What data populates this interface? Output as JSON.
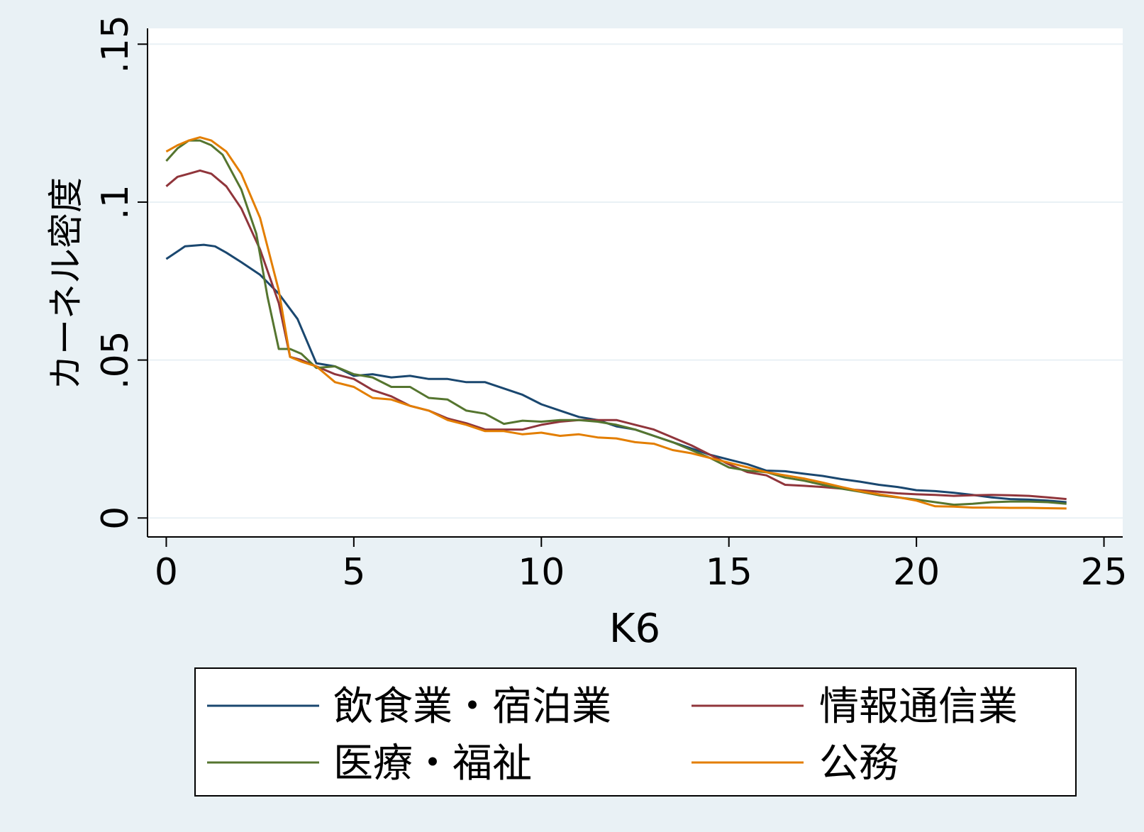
{
  "chart_data": {
    "type": "line",
    "title": "",
    "xlabel": "K6",
    "ylabel": "カーネル密度",
    "xlim": [
      -0.5,
      25.5
    ],
    "ylim": [
      -0.006,
      0.155
    ],
    "x_ticks": [
      0,
      5,
      10,
      15,
      20,
      25
    ],
    "x_tick_labels": [
      "0",
      "5",
      "10",
      "15",
      "20",
      "25"
    ],
    "y_ticks": [
      0,
      0.05,
      0.1,
      0.15
    ],
    "y_tick_labels": [
      "0",
      ".05",
      ".1",
      ".15"
    ],
    "grid": true,
    "legend_position": "bottom",
    "colors": {
      "background": "#e9f1f5",
      "plot_area": "#ffffff",
      "gridline": "#e9f1f5"
    },
    "series": [
      {
        "name": "飲食業・宿泊業",
        "color": "#1a476f",
        "points": [
          [
            0,
            0.082
          ],
          [
            0.5,
            0.086
          ],
          [
            1,
            0.0865
          ],
          [
            1.3,
            0.086
          ],
          [
            1.6,
            0.084
          ],
          [
            2,
            0.081
          ],
          [
            2.5,
            0.077
          ],
          [
            3,
            0.071
          ],
          [
            3.5,
            0.063
          ],
          [
            4,
            0.049
          ],
          [
            4.5,
            0.048
          ],
          [
            5,
            0.045
          ],
          [
            5.5,
            0.0455
          ],
          [
            6,
            0.0445
          ],
          [
            6.5,
            0.045
          ],
          [
            7,
            0.044
          ],
          [
            7.5,
            0.044
          ],
          [
            8,
            0.043
          ],
          [
            8.5,
            0.043
          ],
          [
            9,
            0.041
          ],
          [
            9.5,
            0.039
          ],
          [
            10,
            0.036
          ],
          [
            10.5,
            0.034
          ],
          [
            11,
            0.032
          ],
          [
            11.5,
            0.031
          ],
          [
            12,
            0.029
          ],
          [
            12.5,
            0.028
          ],
          [
            13,
            0.026
          ],
          [
            13.5,
            0.024
          ],
          [
            14,
            0.022
          ],
          [
            14.5,
            0.02
          ],
          [
            15,
            0.0185
          ],
          [
            15.5,
            0.017
          ],
          [
            16,
            0.015
          ],
          [
            16.5,
            0.0148
          ],
          [
            17,
            0.014
          ],
          [
            17.5,
            0.0133
          ],
          [
            18,
            0.0123
          ],
          [
            18.5,
            0.0115
          ],
          [
            19,
            0.0105
          ],
          [
            19.5,
            0.0098
          ],
          [
            20,
            0.0088
          ],
          [
            20.5,
            0.0085
          ],
          [
            21,
            0.008
          ],
          [
            21.5,
            0.0073
          ],
          [
            22,
            0.0065
          ],
          [
            22.5,
            0.006
          ],
          [
            23,
            0.0058
          ],
          [
            23.5,
            0.0055
          ],
          [
            24,
            0.005
          ]
        ]
      },
      {
        "name": "情報通信業",
        "color": "#90353b",
        "points": [
          [
            0,
            0.105
          ],
          [
            0.3,
            0.108
          ],
          [
            0.6,
            0.109
          ],
          [
            0.9,
            0.11
          ],
          [
            1.2,
            0.109
          ],
          [
            1.6,
            0.105
          ],
          [
            2,
            0.098
          ],
          [
            2.5,
            0.085
          ],
          [
            3,
            0.068
          ],
          [
            3.3,
            0.051
          ],
          [
            3.6,
            0.05
          ],
          [
            4,
            0.048
          ],
          [
            4.5,
            0.0455
          ],
          [
            5,
            0.044
          ],
          [
            5.5,
            0.0405
          ],
          [
            6,
            0.0385
          ],
          [
            6.5,
            0.0355
          ],
          [
            7,
            0.034
          ],
          [
            7.5,
            0.0315
          ],
          [
            8,
            0.03
          ],
          [
            8.5,
            0.028
          ],
          [
            9,
            0.028
          ],
          [
            9.5,
            0.028
          ],
          [
            10,
            0.0295
          ],
          [
            10.5,
            0.0305
          ],
          [
            11,
            0.031
          ],
          [
            11.5,
            0.031
          ],
          [
            12,
            0.031
          ],
          [
            12.5,
            0.0295
          ],
          [
            13,
            0.028
          ],
          [
            13.5,
            0.0255
          ],
          [
            14,
            0.023
          ],
          [
            14.5,
            0.02
          ],
          [
            15,
            0.017
          ],
          [
            15.5,
            0.0145
          ],
          [
            16,
            0.0135
          ],
          [
            16.5,
            0.0105
          ],
          [
            17,
            0.0102
          ],
          [
            17.5,
            0.0098
          ],
          [
            18,
            0.0093
          ],
          [
            18.5,
            0.0088
          ],
          [
            19,
            0.0083
          ],
          [
            19.5,
            0.0078
          ],
          [
            20,
            0.0075
          ],
          [
            20.5,
            0.0073
          ],
          [
            21,
            0.007
          ],
          [
            21.5,
            0.0072
          ],
          [
            22,
            0.0073
          ],
          [
            22.5,
            0.0072
          ],
          [
            23,
            0.007
          ],
          [
            23.5,
            0.0065
          ],
          [
            24,
            0.006
          ]
        ]
      },
      {
        "name": "医療・福祉",
        "color": "#55752f",
        "points": [
          [
            0,
            0.113
          ],
          [
            0.3,
            0.117
          ],
          [
            0.6,
            0.1195
          ],
          [
            0.9,
            0.1195
          ],
          [
            1.2,
            0.118
          ],
          [
            1.5,
            0.115
          ],
          [
            2,
            0.104
          ],
          [
            2.4,
            0.09
          ],
          [
            2.7,
            0.07
          ],
          [
            3,
            0.0535
          ],
          [
            3.3,
            0.0535
          ],
          [
            3.6,
            0.052
          ],
          [
            4,
            0.0475
          ],
          [
            4.5,
            0.048
          ],
          [
            5,
            0.0455
          ],
          [
            5.5,
            0.0445
          ],
          [
            6,
            0.0415
          ],
          [
            6.5,
            0.0415
          ],
          [
            7,
            0.038
          ],
          [
            7.5,
            0.0375
          ],
          [
            8,
            0.034
          ],
          [
            8.5,
            0.033
          ],
          [
            9,
            0.0298
          ],
          [
            9.5,
            0.0308
          ],
          [
            10,
            0.0305
          ],
          [
            10.5,
            0.031
          ],
          [
            11,
            0.031
          ],
          [
            11.5,
            0.0305
          ],
          [
            12,
            0.0295
          ],
          [
            12.5,
            0.028
          ],
          [
            13,
            0.026
          ],
          [
            13.5,
            0.024
          ],
          [
            14,
            0.0215
          ],
          [
            14.5,
            0.019
          ],
          [
            15,
            0.016
          ],
          [
            15.5,
            0.015
          ],
          [
            16,
            0.0145
          ],
          [
            16.5,
            0.0128
          ],
          [
            17,
            0.0118
          ],
          [
            17.5,
            0.0105
          ],
          [
            18,
            0.0093
          ],
          [
            18.5,
            0.0083
          ],
          [
            19,
            0.0072
          ],
          [
            19.5,
            0.0065
          ],
          [
            20,
            0.0058
          ],
          [
            20.5,
            0.005
          ],
          [
            21,
            0.0042
          ],
          [
            21.5,
            0.0045
          ],
          [
            22,
            0.005
          ],
          [
            22.5,
            0.0052
          ],
          [
            23,
            0.0052
          ],
          [
            23.5,
            0.005
          ],
          [
            24,
            0.0045
          ]
        ]
      },
      {
        "name": "公務",
        "color": "#e37e00",
        "points": [
          [
            0,
            0.116
          ],
          [
            0.3,
            0.118
          ],
          [
            0.6,
            0.1195
          ],
          [
            0.9,
            0.1205
          ],
          [
            1.2,
            0.1195
          ],
          [
            1.6,
            0.116
          ],
          [
            2,
            0.109
          ],
          [
            2.5,
            0.095
          ],
          [
            3,
            0.072
          ],
          [
            3.3,
            0.051
          ],
          [
            3.6,
            0.0495
          ],
          [
            4,
            0.048
          ],
          [
            4.5,
            0.043
          ],
          [
            5,
            0.0415
          ],
          [
            5.5,
            0.038
          ],
          [
            6,
            0.0375
          ],
          [
            6.5,
            0.0355
          ],
          [
            7,
            0.034
          ],
          [
            7.5,
            0.031
          ],
          [
            8,
            0.0295
          ],
          [
            8.5,
            0.0275
          ],
          [
            9,
            0.0275
          ],
          [
            9.5,
            0.0265
          ],
          [
            10,
            0.027
          ],
          [
            10.5,
            0.026
          ],
          [
            11,
            0.0265
          ],
          [
            11.5,
            0.0255
          ],
          [
            12,
            0.0252
          ],
          [
            12.5,
            0.024
          ],
          [
            13,
            0.0235
          ],
          [
            13.5,
            0.0215
          ],
          [
            14,
            0.0205
          ],
          [
            14.5,
            0.019
          ],
          [
            15,
            0.0175
          ],
          [
            15.5,
            0.016
          ],
          [
            16,
            0.0145
          ],
          [
            16.5,
            0.0135
          ],
          [
            17,
            0.0125
          ],
          [
            17.5,
            0.0112
          ],
          [
            18,
            0.0098
          ],
          [
            18.5,
            0.0085
          ],
          [
            19,
            0.0075
          ],
          [
            19.5,
            0.0066
          ],
          [
            20,
            0.0055
          ],
          [
            20.5,
            0.0037
          ],
          [
            21,
            0.0036
          ],
          [
            21.5,
            0.0033
          ],
          [
            22,
            0.0033
          ],
          [
            22.5,
            0.0032
          ],
          [
            23,
            0.0032
          ],
          [
            23.5,
            0.0031
          ],
          [
            24,
            0.003
          ]
        ]
      }
    ]
  }
}
